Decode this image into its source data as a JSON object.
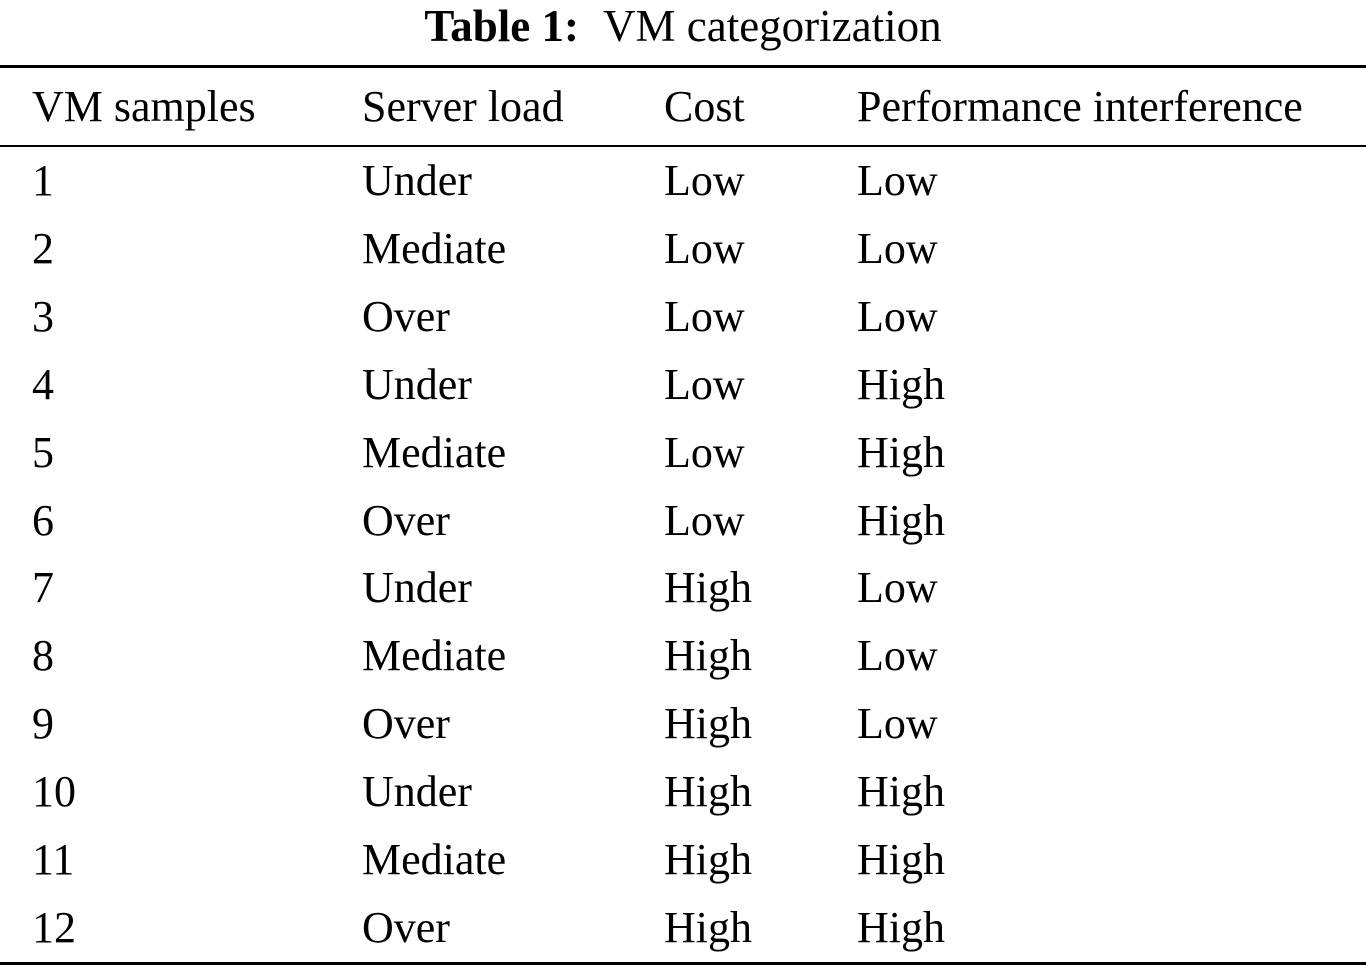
{
  "title": {
    "label": "Table 1:",
    "caption": "VM categorization"
  },
  "table": {
    "columns": [
      "VM samples",
      "Server load",
      "Cost",
      "Performance interference"
    ],
    "rows": [
      [
        "1",
        "Under",
        "Low",
        "Low"
      ],
      [
        "2",
        "Mediate",
        "Low",
        "Low"
      ],
      [
        "3",
        "Over",
        "Low",
        "Low"
      ],
      [
        "4",
        "Under",
        "Low",
        "High"
      ],
      [
        "5",
        "Mediate",
        "Low",
        "High"
      ],
      [
        "6",
        "Over",
        "Low",
        "High"
      ],
      [
        "7",
        "Under",
        "High",
        "Low"
      ],
      [
        "8",
        "Mediate",
        "High",
        "Low"
      ],
      [
        "9",
        "Over",
        "High",
        "Low"
      ],
      [
        "10",
        "Under",
        "High",
        "High"
      ],
      [
        "11",
        "Mediate",
        "High",
        "High"
      ],
      [
        "12",
        "Over",
        "High",
        "High"
      ]
    ]
  },
  "colors": {
    "background": "#ffffff",
    "text": "#000000",
    "rule": "#000000"
  }
}
